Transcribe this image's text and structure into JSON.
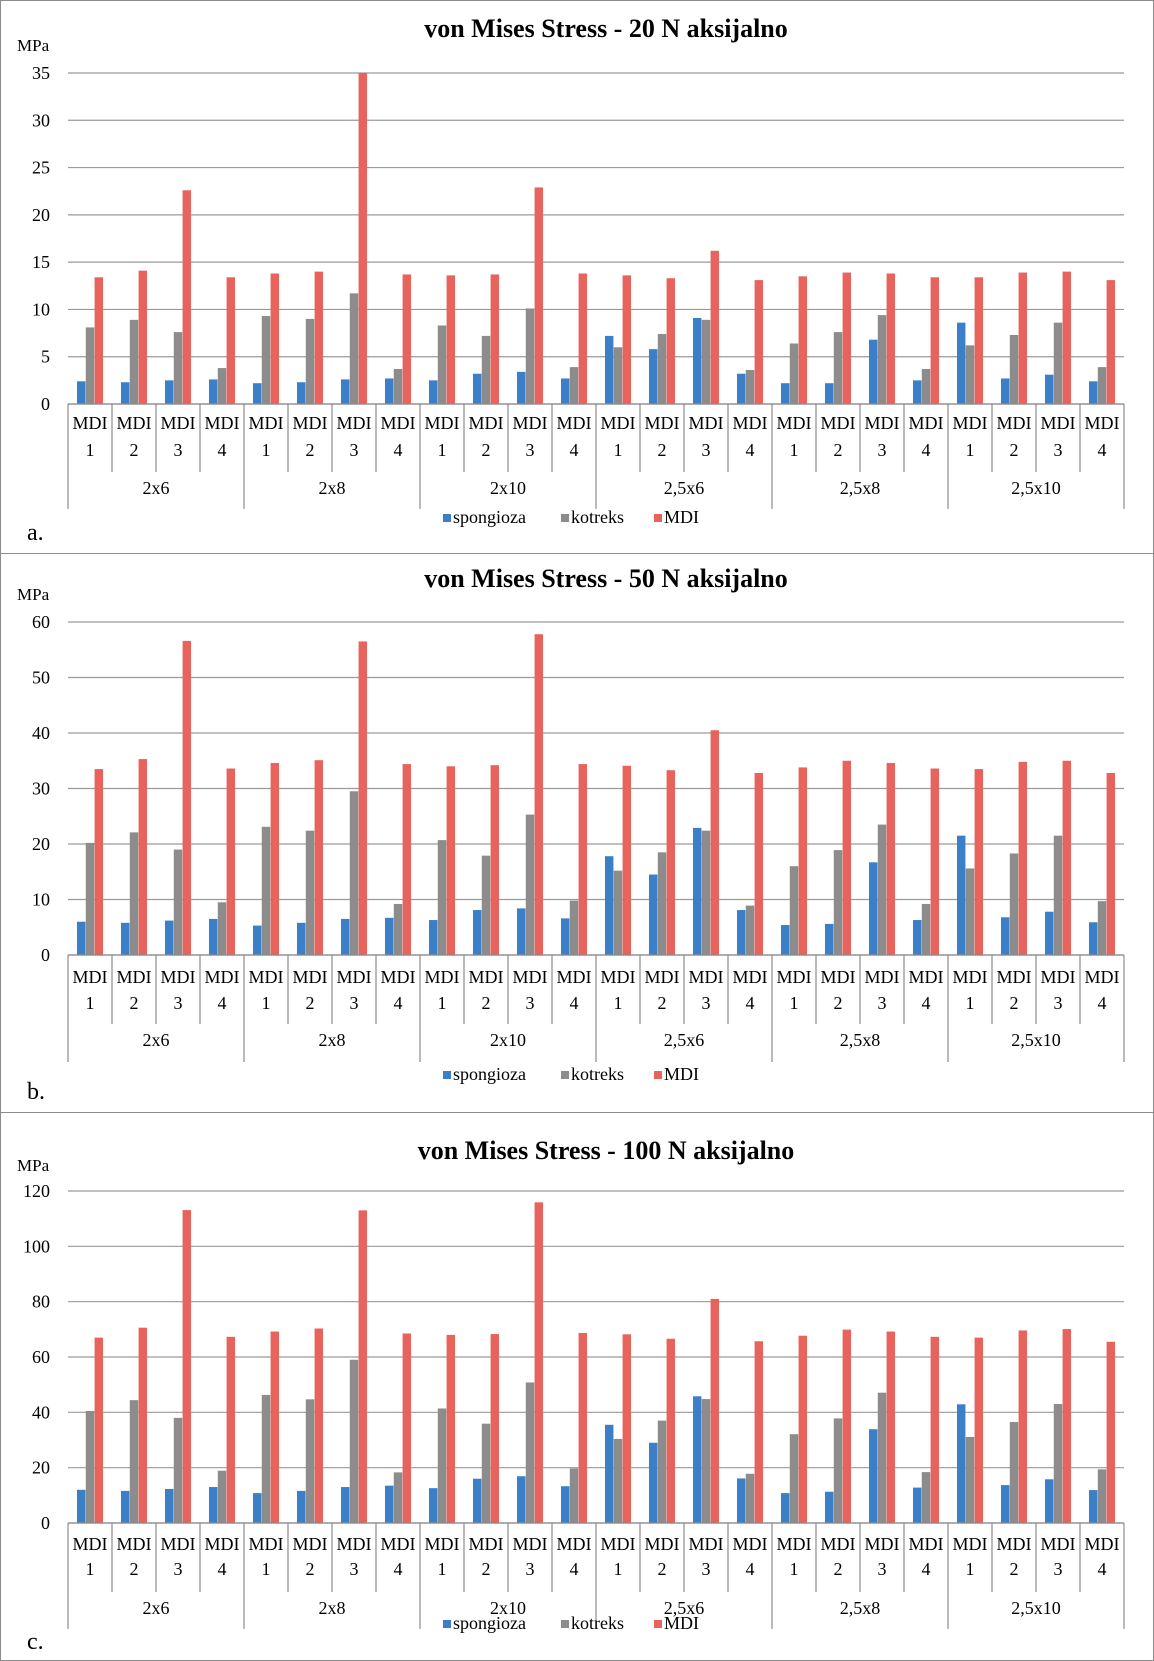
{
  "chart_data": [
    {
      "type": "bar",
      "panel_label": "a.",
      "title": "von Mises Stress - 20 N aksijalno",
      "ylabel": "MPa",
      "ylim": [
        0,
        35
      ],
      "yticks": [
        0,
        5,
        10,
        15,
        20,
        25,
        30,
        35
      ],
      "grid": true,
      "legend_position": "bottom",
      "groups": [
        "2x6",
        "2x8",
        "2x10",
        "2,5x6",
        "2,5x8",
        "2,5x10"
      ],
      "subcategories": [
        [
          "MDI",
          "1"
        ],
        [
          "MDI",
          "2"
        ],
        [
          "MDI",
          "3"
        ],
        [
          "MDI",
          "4"
        ]
      ],
      "series": [
        {
          "name": "spongioza",
          "color": "#3c7fc9",
          "values": [
            2.4,
            2.3,
            2.5,
            2.6,
            2.2,
            2.3,
            2.6,
            2.7,
            2.5,
            3.2,
            3.4,
            2.7,
            7.2,
            5.8,
            9.1,
            3.2,
            2.2,
            2.2,
            6.8,
            2.5,
            8.6,
            2.7,
            3.1,
            2.4
          ]
        },
        {
          "name": "kotreks",
          "color": "#8c8c8c",
          "values": [
            8.1,
            8.9,
            7.6,
            3.8,
            9.3,
            9.0,
            11.7,
            3.7,
            8.3,
            7.2,
            10.1,
            3.9,
            6.0,
            7.4,
            8.9,
            3.6,
            6.4,
            7.6,
            9.4,
            3.7,
            6.2,
            7.3,
            8.6,
            3.9
          ]
        },
        {
          "name": "MDI",
          "color": "#e8635c",
          "values": [
            13.4,
            14.1,
            22.6,
            13.4,
            13.8,
            14.0,
            35.0,
            13.7,
            13.6,
            13.7,
            22.9,
            13.8,
            13.6,
            13.3,
            16.2,
            13.1,
            13.5,
            13.9,
            13.8,
            13.4,
            13.4,
            13.9,
            14.0,
            13.1
          ]
        }
      ]
    },
    {
      "type": "bar",
      "panel_label": "b.",
      "title": "von Mises Stress - 50 N aksijalno",
      "ylabel": "MPa",
      "ylim": [
        0,
        60
      ],
      "yticks": [
        0,
        10,
        20,
        30,
        40,
        50,
        60
      ],
      "grid": true,
      "legend_position": "bottom",
      "groups": [
        "2x6",
        "2x8",
        "2x10",
        "2,5x6",
        "2,5x8",
        "2,5x10"
      ],
      "subcategories": [
        [
          "MDI",
          "1"
        ],
        [
          "MDI",
          "2"
        ],
        [
          "MDI",
          "3"
        ],
        [
          "MDI",
          "4"
        ]
      ],
      "series": [
        {
          "name": "spongioza",
          "color": "#3c7fc9",
          "values": [
            6.0,
            5.8,
            6.2,
            6.5,
            5.3,
            5.8,
            6.5,
            6.7,
            6.3,
            8.1,
            8.4,
            6.6,
            17.8,
            14.5,
            22.9,
            8.1,
            5.4,
            5.6,
            16.7,
            6.3,
            21.5,
            6.8,
            7.8,
            5.9
          ]
        },
        {
          "name": "kotreks",
          "color": "#8c8c8c",
          "values": [
            20.2,
            22.1,
            19.0,
            9.5,
            23.1,
            22.4,
            29.5,
            9.2,
            20.7,
            17.9,
            25.3,
            9.8,
            15.2,
            18.5,
            22.4,
            8.9,
            16.0,
            18.9,
            23.5,
            9.2,
            15.6,
            18.3,
            21.5,
            9.7
          ]
        },
        {
          "name": "MDI",
          "color": "#e8635c",
          "values": [
            33.5,
            35.3,
            56.6,
            33.6,
            34.6,
            35.1,
            56.5,
            34.4,
            34.0,
            34.2,
            57.8,
            34.4,
            34.1,
            33.3,
            40.5,
            32.8,
            33.8,
            35.0,
            34.6,
            33.6,
            33.5,
            34.8,
            35.0,
            32.8
          ]
        }
      ]
    },
    {
      "type": "bar",
      "panel_label": "c.",
      "title": "von Mises Stress - 100 N aksijalno",
      "ylabel": "MPa",
      "ylim": [
        0,
        120
      ],
      "yticks": [
        0,
        20,
        40,
        60,
        80,
        100,
        120
      ],
      "grid": true,
      "legend_position": "bottom",
      "groups": [
        "2x6",
        "2x8",
        "2x10",
        "2,5x6",
        "2,5x8",
        "2,5x10"
      ],
      "subcategories": [
        [
          "MDI",
          "1"
        ],
        [
          "MDI",
          "2"
        ],
        [
          "MDI",
          "3"
        ],
        [
          "MDI",
          "4"
        ]
      ],
      "series": [
        {
          "name": "spongioza",
          "color": "#3c7fc9",
          "values": [
            12.0,
            11.6,
            12.3,
            13.0,
            10.8,
            11.6,
            13.0,
            13.5,
            12.6,
            16.0,
            16.9,
            13.3,
            35.5,
            29.0,
            45.8,
            16.1,
            10.8,
            11.3,
            33.9,
            12.8,
            42.9,
            13.7,
            15.8,
            11.9
          ]
        },
        {
          "name": "kotreks",
          "color": "#8c8c8c",
          "values": [
            40.5,
            44.4,
            38.0,
            18.9,
            46.3,
            44.7,
            59.0,
            18.3,
            41.4,
            35.9,
            50.8,
            19.7,
            30.4,
            37.0,
            44.8,
            17.8,
            32.1,
            37.8,
            47.1,
            18.4,
            31.1,
            36.5,
            43.0,
            19.4
          ]
        },
        {
          "name": "MDI",
          "color": "#e8635c",
          "values": [
            67.0,
            70.6,
            113.1,
            67.3,
            69.2,
            70.3,
            113.0,
            68.5,
            68.0,
            68.3,
            115.9,
            68.7,
            68.2,
            66.6,
            81.0,
            65.7,
            67.7,
            69.9,
            69.2,
            67.3,
            67.0,
            69.6,
            70.1,
            65.5
          ]
        }
      ]
    }
  ]
}
